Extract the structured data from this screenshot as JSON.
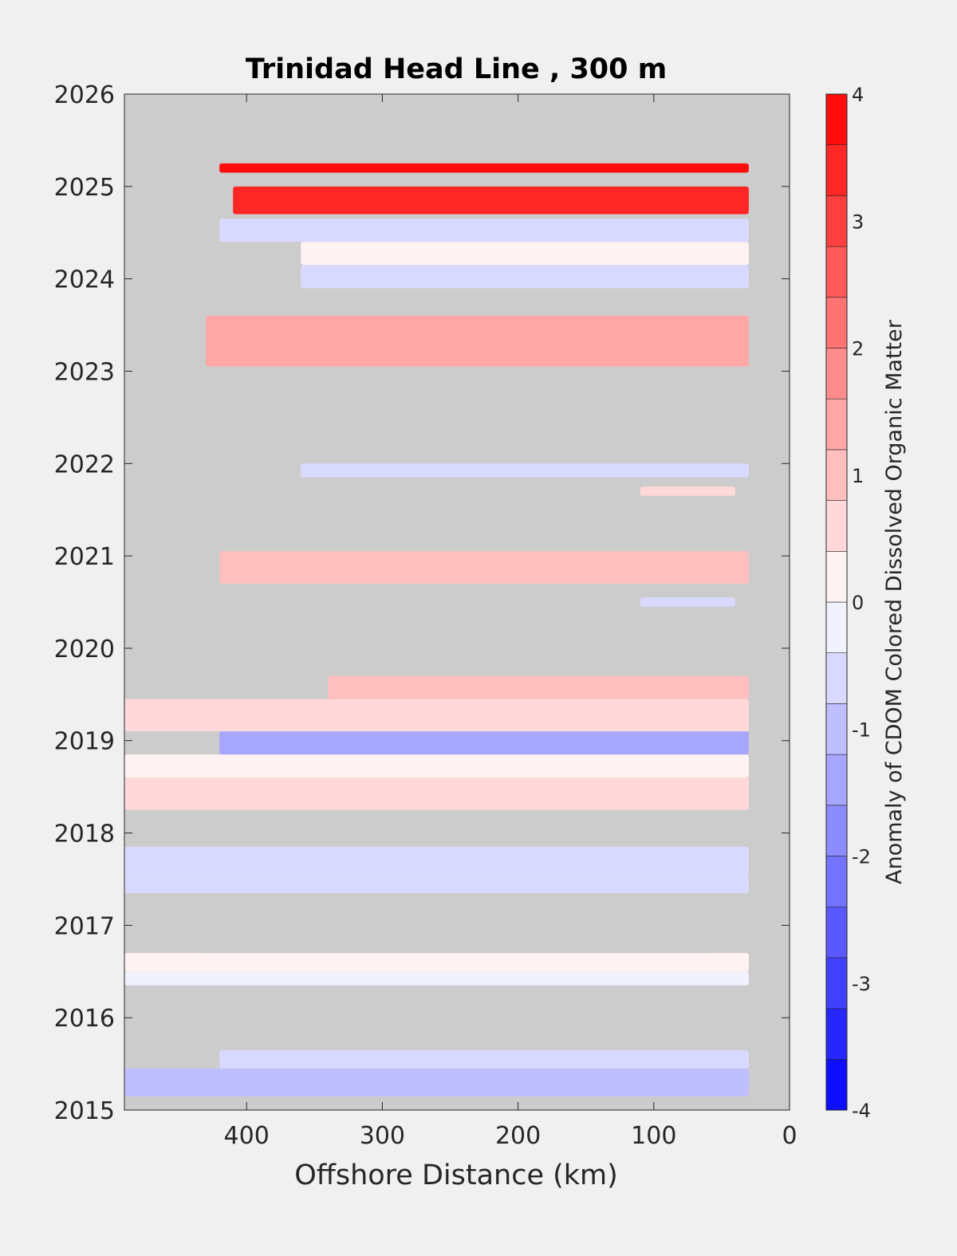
{
  "chart_data": {
    "type": "heatmap",
    "title": "Trinidad Head Line , 300 m",
    "xlabel": "Offshore Distance (km)",
    "ylabel": "",
    "xlim": [
      490,
      0
    ],
    "ylim": [
      2015,
      2026
    ],
    "x_ticks": [
      "400",
      "300",
      "200",
      "100",
      "0"
    ],
    "x_tick_values": [
      400,
      300,
      200,
      100,
      0
    ],
    "y_ticks": [
      "2015",
      "2016",
      "2017",
      "2018",
      "2019",
      "2020",
      "2021",
      "2022",
      "2023",
      "2024",
      "2025",
      "2026"
    ],
    "y_tick_values": [
      2015,
      2016,
      2017,
      2018,
      2019,
      2020,
      2021,
      2022,
      2023,
      2024,
      2025,
      2026
    ],
    "colorbar": {
      "label": "Anomaly of CDOM Colored Dissolved Organic Matter",
      "range": [
        -4,
        4
      ],
      "ticks": [
        "-4",
        "-3",
        "-2",
        "-1",
        "0",
        "1",
        "2",
        "3",
        "4"
      ],
      "tick_values": [
        -4,
        -3,
        -2,
        -1,
        0,
        1,
        2,
        3,
        4
      ],
      "levels": 20,
      "colormap": "blue-white-red",
      "low_color": "#0000ff",
      "mid_color": "#ffffff",
      "high_color": "#ff0000"
    },
    "missing_color": "#cccccc",
    "bands": [
      {
        "y": [
          2015.15,
          2015.45
        ],
        "x": [
          490,
          30
        ],
        "anomaly": -0.9
      },
      {
        "y": [
          2015.45,
          2015.65
        ],
        "x": [
          420,
          30
        ],
        "anomaly": -0.5
      },
      {
        "y": [
          2016.35,
          2016.5
        ],
        "x": [
          490,
          30
        ],
        "anomaly": -0.4
      },
      {
        "y": [
          2016.5,
          2016.7
        ],
        "x": [
          490,
          30
        ],
        "anomaly": 0.1
      },
      {
        "y": [
          2017.35,
          2017.55
        ],
        "x": [
          490,
          30
        ],
        "anomaly": -0.8
      },
      {
        "y": [
          2017.55,
          2017.85
        ],
        "x": [
          490,
          30
        ],
        "anomaly": -0.5
      },
      {
        "y": [
          2018.25,
          2018.6
        ],
        "x": [
          490,
          30
        ],
        "anomaly": 0.6
      },
      {
        "y": [
          2018.6,
          2018.85
        ],
        "x": [
          490,
          30
        ],
        "anomaly": 0.1
      },
      {
        "y": [
          2018.85,
          2019.1
        ],
        "x": [
          420,
          30
        ],
        "anomaly": -1.5
      },
      {
        "y": [
          2019.1,
          2019.45
        ],
        "x": [
          490,
          30
        ],
        "anomaly": 0.7
      },
      {
        "y": [
          2019.45,
          2019.7
        ],
        "x": [
          340,
          30
        ],
        "anomaly": 1.0
      },
      {
        "y": [
          2020.45,
          2020.55
        ],
        "x": [
          110,
          40
        ],
        "anomaly": -0.7
      },
      {
        "y": [
          2020.7,
          2021.05
        ],
        "x": [
          420,
          30
        ],
        "anomaly": 0.9
      },
      {
        "y": [
          2021.65,
          2021.75
        ],
        "x": [
          110,
          40
        ],
        "anomaly": 0.5
      },
      {
        "y": [
          2021.85,
          2022.0
        ],
        "x": [
          360,
          30
        ],
        "anomaly": -0.6
      },
      {
        "y": [
          2023.05,
          2023.6
        ],
        "x": [
          430,
          30
        ],
        "anomaly": 1.4
      },
      {
        "y": [
          2023.9,
          2024.15
        ],
        "x": [
          360,
          30
        ],
        "anomaly": -0.7
      },
      {
        "y": [
          2024.15,
          2024.4
        ],
        "x": [
          360,
          30
        ],
        "anomaly": 0.1
      },
      {
        "y": [
          2024.4,
          2024.65
        ],
        "x": [
          420,
          30
        ],
        "anomaly": -0.6
      },
      {
        "y": [
          2024.7,
          2025.0
        ],
        "x": [
          410,
          30
        ],
        "anomaly": 3.5
      },
      {
        "y": [
          2025.15,
          2025.25
        ],
        "x": [
          420,
          30
        ],
        "anomaly": 3.8
      }
    ]
  }
}
